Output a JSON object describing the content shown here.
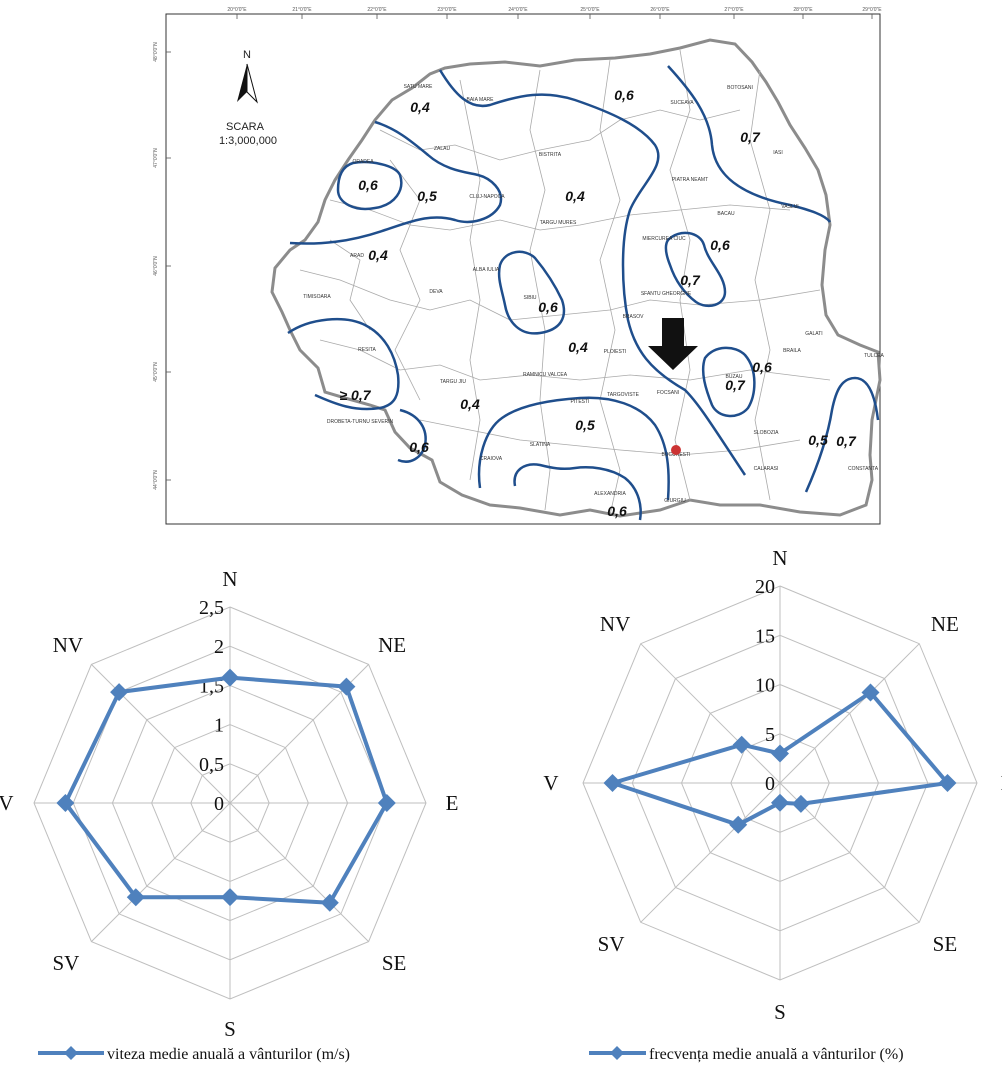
{
  "map": {
    "north_label": "N",
    "scale_title": "SCARA",
    "scale_value": "1:3,000,000",
    "graticule_top": [
      "20°0'0\"E",
      "21°0'0\"E",
      "22°0'0\"E",
      "23°0'0\"E",
      "24°0'0\"E",
      "25°0'0\"E",
      "26°0'0\"E",
      "27°0'0\"E",
      "28°0'0\"E",
      "29°0'0\"E"
    ],
    "graticule_left": [
      "48°0'0\"N",
      "47°0'0\"N",
      "46°0'0\"N",
      "45°0'0\"N",
      "44°0'0\"N"
    ],
    "isoline_labels": [
      "0,4",
      "0,6",
      "0,7",
      "0,6",
      "0,5",
      "0,4",
      "0,4",
      "0,6",
      "0,7",
      "0,6",
      "0,6",
      "0,4",
      "≥ 0,7",
      "0,4",
      "0,5",
      "0,6",
      "0,7",
      "0,6",
      "0,5",
      "0,7"
    ],
    "cities": [
      "SATU MARE",
      "BAIA MARE",
      "BOTOSANI",
      "SUCEAVA",
      "IASI",
      "ORADEA",
      "ZALAU",
      "BISTRITA",
      "PIATRA NEAMT",
      "CLUJ-NAPOCA",
      "VASLUI",
      "BACAU",
      "TARGU MURES",
      "MIERCUREA CIUC",
      "ARAD",
      "ALBA IULIA",
      "SIBIU",
      "SFANTU GHEORGHE",
      "DEVA",
      "FOCSANI",
      "GALATI",
      "BRASOV",
      "TIMISOARA",
      "RESITA",
      "TULCEA",
      "BRAILA",
      "BUZAU",
      "TARGU JIU",
      "RAMNICU VALCEA",
      "PITESTI",
      "TARGOVISTE",
      "PLOIESTI",
      "DROBETA-TURNU SEVERIN",
      "SLOBOZIA",
      "BUCURESTI",
      "CRAIOVA",
      "SLATINA",
      "CALARASI",
      "CONSTANTA",
      "ALEXANDRIA",
      "GIURGIU"
    ]
  },
  "chart_data": [
    {
      "type": "radar",
      "categories": [
        "N",
        "NE",
        "E",
        "SE",
        "S",
        "SV",
        "V",
        "NV"
      ],
      "tick_labels": [
        "0",
        "0,5",
        "1",
        "1,5",
        "2",
        "2,5"
      ],
      "rlim": [
        0,
        2.5
      ],
      "series": [
        {
          "name": "viteza medie anuală a vânturilor (m/s)",
          "values": [
            1.6,
            2.1,
            2.0,
            1.8,
            1.2,
            1.7,
            2.1,
            2.0
          ],
          "color": "#4f81bd"
        }
      ],
      "legend": "bottom"
    },
    {
      "type": "radar",
      "categories": [
        "N",
        "NE",
        "E",
        "SE",
        "S",
        "SV",
        "V",
        "NV"
      ],
      "tick_labels": [
        "0",
        "5",
        "10",
        "15",
        "20"
      ],
      "rlim": [
        0,
        20
      ],
      "series": [
        {
          "name": "frecvența medie anuală a vânturilor (%)",
          "values": [
            3,
            13,
            17,
            3,
            2,
            6,
            17,
            5.5
          ],
          "color": "#4f81bd"
        }
      ],
      "legend": "bottom"
    }
  ]
}
